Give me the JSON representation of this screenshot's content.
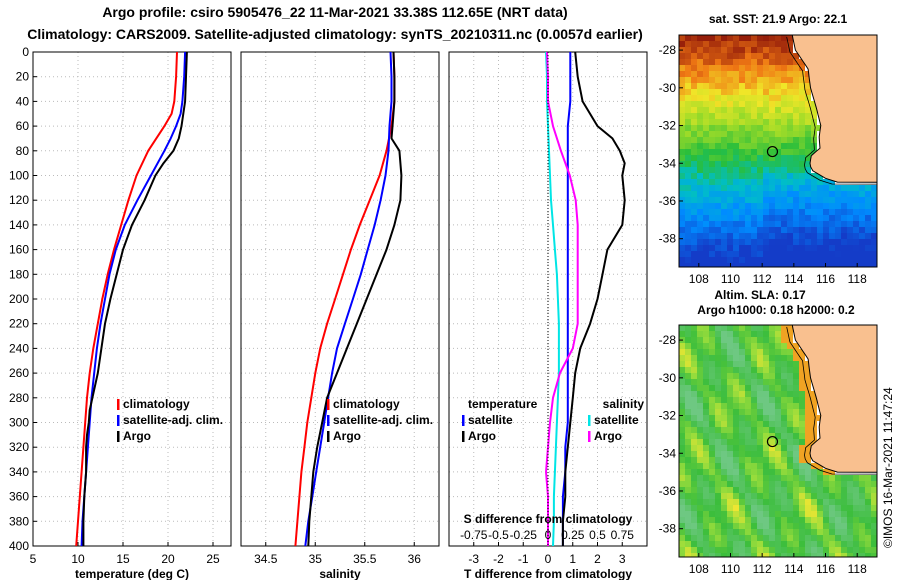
{
  "header": {
    "line1": "Argo profile: csiro 5905476_22 11-Mar-2021 33.38S 112.65E (NRT data)",
    "line2": "Climatology: CARS2009. Satellite-adjusted climatology: synTS_20210311.nc (0.0057d earlier)"
  },
  "colors": {
    "climatology": "#ff0000",
    "satellite": "#0000ff",
    "argo": "#000000",
    "sat_salinity": "#00e5e5",
    "argo_salinity": "#ff00ff",
    "land": "#f9c08f"
  },
  "chart_data": [
    {
      "type": "line",
      "title": "",
      "xlabel": "temperature (deg C)",
      "ylabel": "",
      "xlim": [
        5,
        27
      ],
      "ylim": [
        400,
        0
      ],
      "xticks": [
        "5",
        "10",
        "15",
        "20",
        "25"
      ],
      "xtick_values": [
        5,
        10,
        15,
        20,
        25
      ],
      "yticks": [
        "0",
        "20",
        "40",
        "60",
        "80",
        "100",
        "120",
        "140",
        "160",
        "180",
        "200",
        "220",
        "240",
        "260",
        "280",
        "300",
        "320",
        "340",
        "360",
        "380",
        "400"
      ],
      "ytick_values": [
        0,
        20,
        40,
        60,
        80,
        100,
        120,
        140,
        160,
        180,
        200,
        220,
        240,
        260,
        280,
        300,
        320,
        340,
        360,
        380,
        400
      ],
      "legend": [
        "climatology",
        "satellite-adj. clim.",
        "Argo"
      ],
      "series": [
        {
          "name": "climatology",
          "color": "#ff0000",
          "depth": [
            0,
            20,
            40,
            50,
            60,
            70,
            80,
            100,
            120,
            140,
            160,
            180,
            200,
            220,
            240,
            260,
            280,
            300,
            320,
            340,
            360,
            380,
            400
          ],
          "values": [
            21.0,
            20.9,
            20.7,
            20.4,
            19.6,
            18.7,
            17.8,
            16.5,
            15.6,
            14.8,
            14.0,
            13.3,
            12.7,
            12.2,
            11.7,
            11.3,
            11.0,
            10.8,
            10.6,
            10.4,
            10.2,
            10.0,
            9.8
          ]
        },
        {
          "name": "satellite-adj. clim.",
          "color": "#0000ff",
          "depth": [
            0,
            20,
            40,
            50,
            60,
            70,
            80,
            100,
            120,
            140,
            160,
            180,
            200,
            220,
            240,
            260,
            280,
            300,
            320,
            340,
            360,
            380,
            400
          ],
          "values": [
            21.9,
            21.8,
            21.6,
            21.4,
            20.9,
            20.3,
            19.6,
            18.1,
            16.6,
            15.2,
            14.2,
            13.5,
            13.0,
            12.5,
            12.1,
            11.8,
            11.5,
            11.3,
            11.1,
            10.9,
            10.7,
            10.5,
            10.4
          ]
        },
        {
          "name": "Argo",
          "color": "#000000",
          "depth": [
            0,
            20,
            40,
            60,
            70,
            80,
            90,
            100,
            120,
            140,
            160,
            180,
            200,
            220,
            240,
            260,
            280,
            290,
            300,
            310,
            320,
            340,
            360,
            380,
            400
          ],
          "values": [
            22.1,
            22.0,
            21.9,
            21.5,
            21.2,
            20.6,
            19.5,
            18.6,
            17.4,
            16.0,
            15.0,
            14.3,
            13.6,
            13.0,
            12.6,
            12.2,
            11.6,
            11.3,
            11.2,
            11.0,
            10.9,
            10.9,
            10.7,
            10.6,
            10.6
          ]
        }
      ]
    },
    {
      "type": "line",
      "title": "",
      "xlabel": "salinity",
      "ylabel": "",
      "xlim": [
        34.25,
        36.25
      ],
      "ylim": [
        400,
        0
      ],
      "xticks": [
        "34.5",
        "35",
        "35.5",
        "36"
      ],
      "xtick_values": [
        34.5,
        35,
        35.5,
        36
      ],
      "legend": [
        "climatology",
        "satellite-adj. clim.",
        "Argo"
      ],
      "series": [
        {
          "name": "climatology",
          "color": "#ff0000",
          "depth": [
            0,
            20,
            40,
            60,
            80,
            100,
            120,
            140,
            160,
            180,
            200,
            220,
            240,
            260,
            280,
            300,
            320,
            340,
            360,
            380,
            400
          ],
          "values": [
            35.79,
            35.8,
            35.8,
            35.77,
            35.72,
            35.65,
            35.55,
            35.45,
            35.36,
            35.28,
            35.2,
            35.12,
            35.05,
            35.0,
            34.96,
            34.92,
            34.89,
            34.86,
            34.84,
            34.82,
            34.8
          ]
        },
        {
          "name": "satellite-adj. clim.",
          "color": "#0000ff",
          "depth": [
            0,
            20,
            40,
            60,
            80,
            100,
            120,
            140,
            160,
            180,
            200,
            220,
            240,
            260,
            280,
            300,
            320,
            340,
            360,
            380,
            400
          ],
          "values": [
            35.76,
            35.77,
            35.77,
            35.75,
            35.74,
            35.71,
            35.66,
            35.6,
            35.53,
            35.46,
            35.38,
            35.3,
            35.22,
            35.17,
            35.13,
            35.09,
            35.05,
            35.01,
            34.97,
            34.93,
            34.9
          ]
        },
        {
          "name": "Argo",
          "color": "#000000",
          "depth": [
            0,
            20,
            40,
            60,
            70,
            80,
            100,
            120,
            140,
            160,
            180,
            200,
            220,
            240,
            260,
            280,
            300,
            320,
            340,
            360,
            380,
            400
          ],
          "values": [
            35.79,
            35.8,
            35.8,
            35.78,
            35.77,
            35.85,
            35.87,
            35.86,
            35.8,
            35.72,
            35.62,
            35.52,
            35.42,
            35.32,
            35.22,
            35.12,
            35.07,
            35.02,
            34.98,
            34.96,
            34.94,
            34.93
          ]
        }
      ]
    },
    {
      "type": "line",
      "title": "",
      "xlabel": "T difference from climatology",
      "xlabel_top": "S difference from climatology",
      "ylabel": "",
      "xlim": [
        -4,
        4
      ],
      "ylim": [
        400,
        0
      ],
      "xticks": [
        "-3",
        "-2",
        "-1",
        "0",
        "1",
        "2",
        "3"
      ],
      "xtick_values": [
        -3,
        -2,
        -1,
        0,
        1,
        2,
        3
      ],
      "sticks": [
        "-0.75",
        "-0.5",
        "-0.25",
        "0",
        "0.25",
        "0.5",
        "0.75"
      ],
      "stick_values": [
        -0.75,
        -0.5,
        -0.25,
        0,
        0.25,
        0.5,
        0.75
      ],
      "legend_temperature_title": "temperature",
      "legend_salinity_title": "salinity",
      "legend_temperature": [
        "satellite",
        "Argo"
      ],
      "legend_salinity": [
        "satellite",
        "Argo"
      ],
      "series": [
        {
          "name": "T satellite",
          "color": "#0000ff",
          "units": "T",
          "depth": [
            0,
            20,
            40,
            60,
            80,
            100,
            120,
            140,
            160,
            180,
            200,
            220,
            240,
            260,
            280,
            300,
            320,
            340,
            360,
            380,
            400
          ],
          "values": [
            0.9,
            0.9,
            0.9,
            0.8,
            0.8,
            0.8,
            0.8,
            0.8,
            0.8,
            0.8,
            0.8,
            0.8,
            0.8,
            0.8,
            0.8,
            0.8,
            0.7,
            0.7,
            0.6,
            0.6,
            0.6
          ]
        },
        {
          "name": "T Argo",
          "color": "#000000",
          "units": "T",
          "depth": [
            0,
            20,
            40,
            60,
            70,
            80,
            90,
            100,
            120,
            140,
            160,
            180,
            200,
            220,
            240,
            260,
            280,
            300,
            320,
            340,
            360,
            380,
            400
          ],
          "values": [
            1.1,
            1.2,
            1.4,
            2.0,
            2.6,
            2.9,
            3.1,
            3.0,
            3.1,
            3.0,
            2.4,
            2.2,
            2.0,
            1.7,
            1.3,
            1.1,
            1.0,
            0.9,
            0.8,
            0.7,
            0.7,
            0.6,
            0.6
          ]
        },
        {
          "name": "S satellite",
          "color": "#00e5e5",
          "units": "S",
          "depth": [
            0,
            20,
            40,
            60,
            80,
            100,
            120,
            140,
            160,
            180,
            200,
            220,
            240,
            260,
            280,
            300,
            320,
            340,
            360,
            380,
            400
          ],
          "values": [
            -0.02,
            -0.01,
            -0.01,
            0.0,
            0.01,
            0.02,
            0.03,
            0.05,
            0.07,
            0.09,
            0.1,
            0.11,
            0.11,
            0.11,
            0.1,
            0.09,
            0.08,
            0.07,
            0.06,
            0.06,
            0.05
          ]
        },
        {
          "name": "S Argo",
          "color": "#ff00ff",
          "units": "S",
          "depth": [
            0,
            20,
            40,
            60,
            80,
            100,
            120,
            140,
            160,
            180,
            200,
            220,
            240,
            260,
            280,
            300,
            320,
            340,
            360,
            380,
            400
          ],
          "values": [
            -0.01,
            0.0,
            0.0,
            0.05,
            0.13,
            0.22,
            0.28,
            0.3,
            0.3,
            0.3,
            0.3,
            0.3,
            0.25,
            0.12,
            0.05,
            0.02,
            0.0,
            -0.02,
            0.0,
            0.0,
            0.0
          ]
        }
      ]
    },
    {
      "type": "heatmap",
      "title": "sat. SST: 21.9 Argo: 22.1",
      "xlim": [
        106.75,
        119.25
      ],
      "ylim": [
        -39.5,
        -27.2
      ],
      "xticks": [
        "108",
        "110",
        "112",
        "114",
        "116",
        "118"
      ],
      "xtick_values": [
        108,
        110,
        112,
        114,
        116,
        118
      ],
      "yticks": [
        "-28",
        "-30",
        "-32",
        "-34",
        "-36",
        "-38"
      ],
      "ytick_values": [
        -28,
        -30,
        -32,
        -34,
        -36,
        -38
      ],
      "marker": {
        "lon": 112.65,
        "lat": -33.38
      }
    },
    {
      "type": "heatmap",
      "title_line1": "Altim. SLA: 0.17",
      "title_line2": "Argo h1000: 0.18 h2000: 0.2",
      "xlim": [
        106.75,
        119.25
      ],
      "ylim": [
        -39.5,
        -27.2
      ],
      "xticks": [
        "108",
        "110",
        "112",
        "114",
        "116",
        "118"
      ],
      "xtick_values": [
        108,
        110,
        112,
        114,
        116,
        118
      ],
      "yticks": [
        "-28",
        "-30",
        "-32",
        "-34",
        "-36",
        "-38"
      ],
      "ytick_values": [
        -28,
        -30,
        -32,
        -34,
        -36,
        -38
      ],
      "marker": {
        "lon": 112.65,
        "lat": -33.38
      }
    }
  ],
  "footer": {
    "credit": "©IMOS 16-Mar-2021 11:47:24"
  }
}
